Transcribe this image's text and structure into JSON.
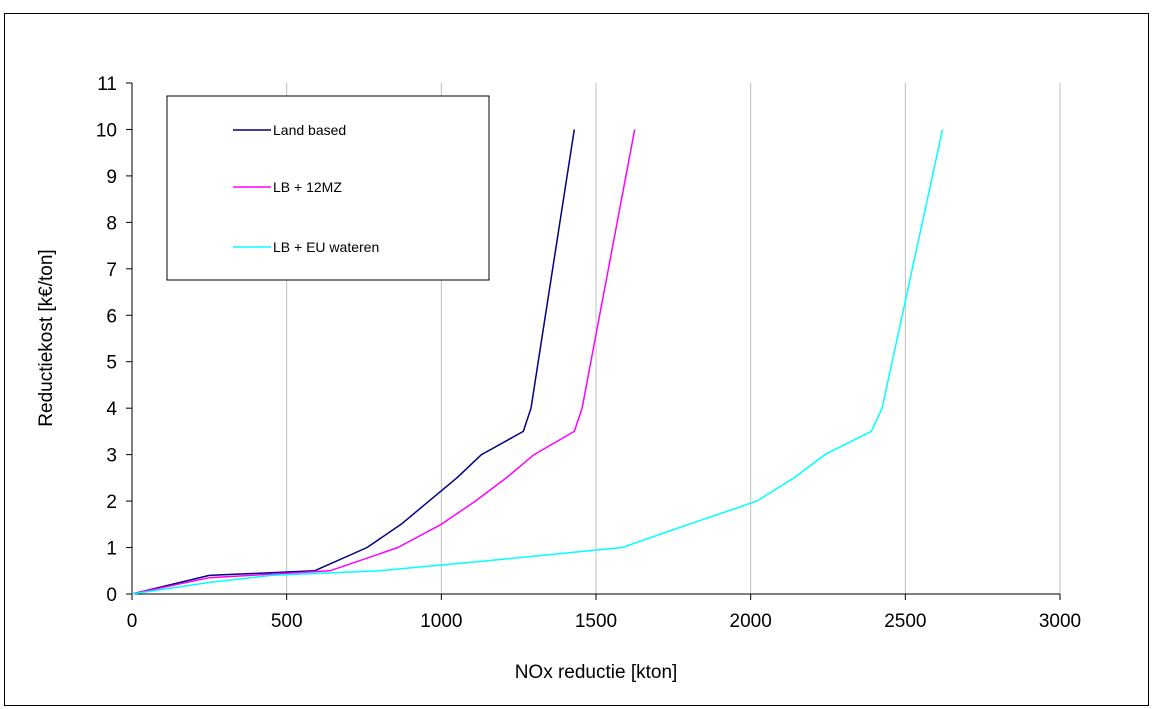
{
  "chart_data": {
    "type": "line",
    "xlabel": "NOx reductie [kton]",
    "ylabel": "Reductiekost  [k€/ton]",
    "xlim": [
      0,
      3000
    ],
    "ylim": [
      0,
      11
    ],
    "xticks": [
      0,
      500,
      1000,
      1500,
      2000,
      2500,
      3000
    ],
    "yticks": [
      0,
      1,
      2,
      3,
      4,
      5,
      6,
      7,
      8,
      9,
      10,
      11
    ],
    "grid": {
      "vertical": true,
      "horizontal": false
    },
    "legend_position": "top-left",
    "series": [
      {
        "name": "Land based",
        "color": "#000080",
        "points": [
          [
            0,
            0
          ],
          [
            250,
            0.4
          ],
          [
            590,
            0.5
          ],
          [
            760,
            1.0
          ],
          [
            870,
            1.5
          ],
          [
            960,
            2.0
          ],
          [
            1050,
            2.5
          ],
          [
            1130,
            3.0
          ],
          [
            1265,
            3.5
          ],
          [
            1290,
            4.0
          ],
          [
            1430,
            10.0
          ]
        ]
      },
      {
        "name": "LB + 12MZ",
        "color": "#ff00ff",
        "points": [
          [
            0,
            0
          ],
          [
            250,
            0.35
          ],
          [
            640,
            0.5
          ],
          [
            860,
            1.0
          ],
          [
            1000,
            1.5
          ],
          [
            1110,
            2.0
          ],
          [
            1210,
            2.5
          ],
          [
            1300,
            3.0
          ],
          [
            1430,
            3.5
          ],
          [
            1455,
            4.0
          ],
          [
            1625,
            10.0
          ]
        ]
      },
      {
        "name": "LB + EU wateren",
        "color": "#00ffff",
        "points": [
          [
            0,
            0
          ],
          [
            250,
            0.25
          ],
          [
            450,
            0.4
          ],
          [
            800,
            0.5
          ],
          [
            1200,
            0.75
          ],
          [
            1585,
            1.0
          ],
          [
            1800,
            1.5
          ],
          [
            2020,
            2.0
          ],
          [
            2140,
            2.5
          ],
          [
            2240,
            3.0
          ],
          [
            2390,
            3.5
          ],
          [
            2425,
            4.0
          ],
          [
            2620,
            10.0
          ]
        ]
      }
    ]
  }
}
